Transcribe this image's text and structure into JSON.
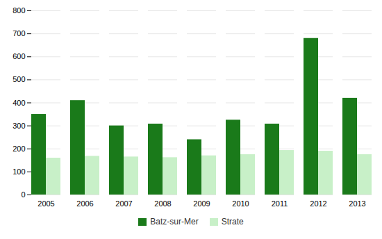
{
  "chart_data": {
    "type": "bar",
    "categories": [
      "2005",
      "2006",
      "2007",
      "2008",
      "2009",
      "2010",
      "2011",
      "2012",
      "2013"
    ],
    "series": [
      {
        "name": "Batz-sur-Mer",
        "color": "#1a7a1a",
        "values": [
          350,
          410,
          300,
          308,
          240,
          325,
          308,
          680,
          420
        ]
      },
      {
        "name": "Strate",
        "color": "#c8f0c8",
        "values": [
          160,
          168,
          165,
          162,
          170,
          175,
          193,
          190,
          175
        ]
      }
    ],
    "ylim": [
      0,
      800
    ],
    "yticks": [
      0,
      100,
      200,
      300,
      400,
      500,
      600,
      700,
      800
    ],
    "grid": true,
    "legend": "bottom"
  }
}
